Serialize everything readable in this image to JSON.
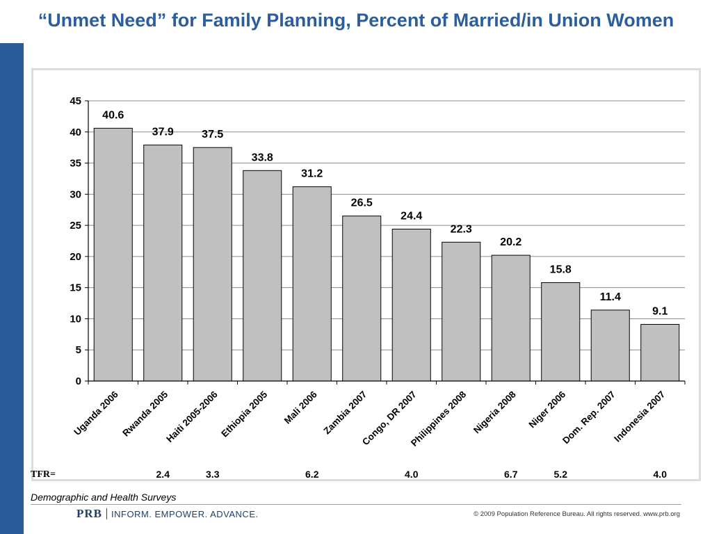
{
  "header": {
    "title": "“Unmet Need” for Family Planning, Percent of Married/in Union Women"
  },
  "chart_data": {
    "type": "bar",
    "categories": [
      "Uganda 2006",
      "Rwanda 2005",
      "Haiti 2005-2006",
      "Ethiopia 2005",
      "Mali 2006",
      "Zambia 2007",
      "Congo, DR 2007",
      "Philippines 2008",
      "Nigeria 2008",
      "Niger 2006",
      "Dom. Rep. 2007",
      "Indonesia 2007"
    ],
    "values": [
      40.6,
      37.9,
      37.5,
      33.8,
      31.2,
      26.5,
      24.4,
      22.3,
      20.2,
      15.8,
      11.4,
      9.1
    ],
    "data_labels": [
      "40.6",
      "37.9",
      "37.5",
      "33.8",
      "31.2",
      "26.5",
      "24.4",
      "22.3",
      "20.2",
      "15.8",
      "11.4",
      "9.1"
    ],
    "y_ticks": [
      "0",
      "5",
      "10",
      "15",
      "20",
      "25",
      "30",
      "35",
      "40",
      "45"
    ],
    "ylim": [
      0,
      45
    ],
    "grid": true,
    "bar_color": "#c0c0c0",
    "title": "",
    "xlabel": "",
    "ylabel": ""
  },
  "tfr": {
    "label": "TFR=",
    "values": [
      {
        "category": "Rwanda 2005",
        "value": "2.4"
      },
      {
        "category": "Haiti 2005-2006",
        "value": "3.3"
      },
      {
        "category": "Mali 2006",
        "value": "6.2"
      },
      {
        "category": "Congo, DR 2007",
        "value": "4.0"
      },
      {
        "category": "Nigeria 2008",
        "value": "6.7"
      },
      {
        "category": "Niger 2006",
        "value": "5.2"
      },
      {
        "category": "Indonesia 2007",
        "value": "4.0"
      }
    ]
  },
  "source": "Demographic and Health Surveys",
  "footer": {
    "logo_text": "PRB",
    "tagline": "INFORM. EMPOWER. ADVANCE.",
    "copyright": "© 2009 Population Reference Bureau. All rights reserved. www.prb.org"
  },
  "colors": {
    "title": "#2b5e9c",
    "side_bar": "#285b98",
    "bar": "#c0c0c0"
  }
}
